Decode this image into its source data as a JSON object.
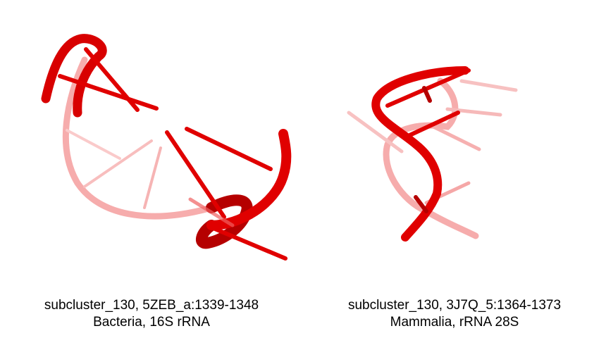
{
  "panels": [
    {
      "caption_line1": "subcluster_130, 5ZEB_a:1339-1348",
      "caption_line2": "Bacteria, 16S rRNA"
    },
    {
      "caption_line1": "subcluster_130, 3J7Q_5:1364-1373",
      "caption_line2": "Mammalia, rRNA 28S"
    }
  ],
  "colors": {
    "backbone": "#e00000",
    "backbone_dark": "#b80000",
    "backbone_faded": "#f08080",
    "background": "#ffffff"
  }
}
